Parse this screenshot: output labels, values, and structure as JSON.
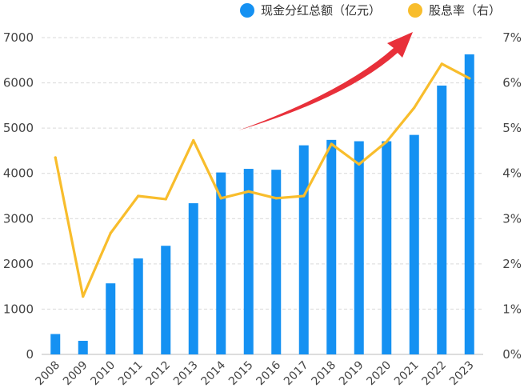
{
  "legend": {
    "bar_label": "现金分红总额（亿元）",
    "line_label": "股息率（右）"
  },
  "colors": {
    "bar": "#1591f2",
    "line": "#f8bd2c",
    "arrow": "#e8303a",
    "grid": "#d9d9d9"
  },
  "chart_data": {
    "type": "bar",
    "categories": [
      "2008",
      "2009",
      "2010",
      "2011",
      "2012",
      "2013",
      "2014",
      "2015",
      "2016",
      "2017",
      "2018",
      "2019",
      "2020",
      "2021",
      "2022",
      "2023"
    ],
    "ylim": [
      0,
      7000
    ],
    "y2lim": [
      0,
      7
    ],
    "yticks": [
      0,
      1000,
      2000,
      3000,
      4000,
      5000,
      6000,
      7000
    ],
    "y2ticks": [
      "0%",
      "1%",
      "2%",
      "3%",
      "4%",
      "5%",
      "6%",
      "7%"
    ],
    "grid": true,
    "legend_position": "top-right",
    "series": [
      {
        "name": "现金分红总额（亿元）",
        "type": "bar",
        "axis": "left",
        "values": [
          450,
          300,
          1570,
          2120,
          2400,
          3340,
          4020,
          4100,
          4080,
          4620,
          4740,
          4710,
          4710,
          4850,
          5940,
          6630
        ]
      },
      {
        "name": "股息率（右）",
        "type": "line",
        "axis": "right",
        "values": [
          4.35,
          1.28,
          2.68,
          3.5,
          3.43,
          4.73,
          3.45,
          3.6,
          3.45,
          3.5,
          4.65,
          4.2,
          4.7,
          5.45,
          6.42,
          6.1
        ]
      }
    ]
  }
}
